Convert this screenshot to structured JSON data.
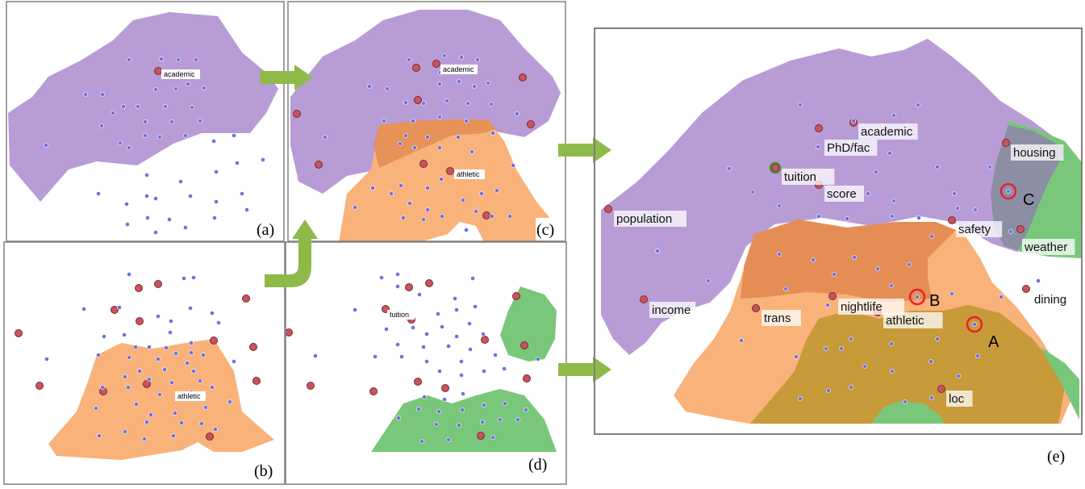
{
  "colors": {
    "purple": "#b89cd6",
    "orange": "#f9b27a",
    "orange_dark": "#e0874f",
    "green": "#79c77a",
    "olive": "#c79a3a",
    "slate": "#8c8ea3",
    "blue_dot": "#6f6fe0",
    "red_dot": "#c7545e",
    "arrow": "#8fba4a",
    "border": "#808080",
    "highlight_ring": "#e8202a"
  },
  "panels": {
    "a": {
      "caption": "(a)",
      "labels": [
        "academic"
      ]
    },
    "b": {
      "caption": "(b)",
      "labels": [
        "athletic"
      ]
    },
    "c": {
      "caption": "(c)",
      "labels": [
        "academic",
        "athletic"
      ]
    },
    "d": {
      "caption": "(d)",
      "labels": [
        "tuition"
      ]
    },
    "e": {
      "caption": "(e)",
      "labels": {
        "academic": "academic",
        "phd": "PhD/fac",
        "tuition": "tuition",
        "score": "score",
        "population": "population",
        "housing": "housing",
        "safety": "safety",
        "weather": "weather",
        "dining": "dining",
        "income": "income",
        "trans": "trans",
        "nightlife": "nightlife",
        "athletic": "athletic",
        "loc": "loc"
      },
      "markers": {
        "a": "A",
        "b": "B",
        "c": "C"
      }
    }
  }
}
